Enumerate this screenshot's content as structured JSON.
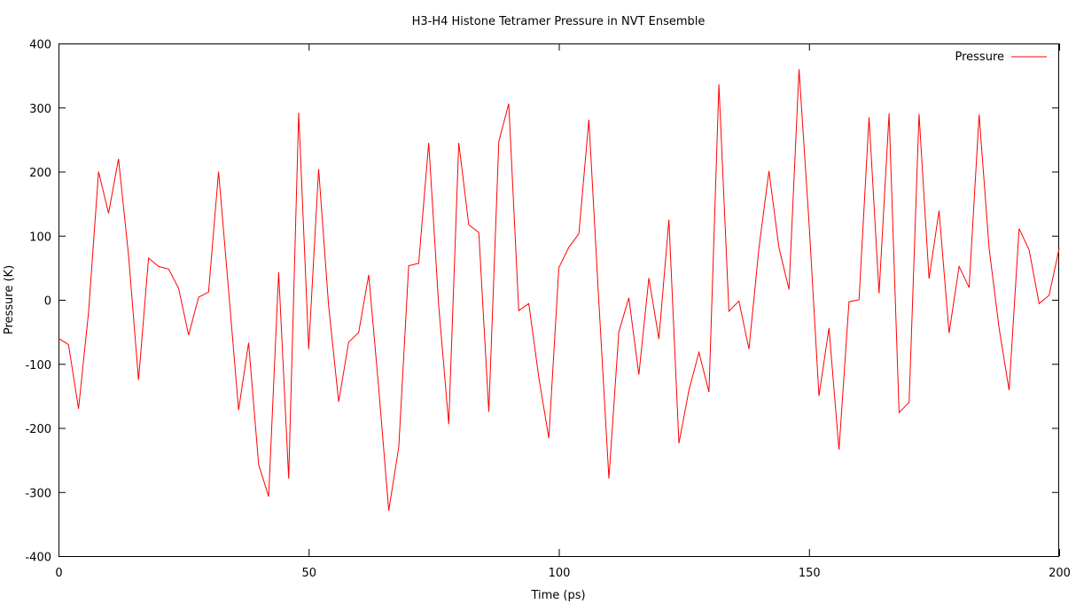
{
  "chart_data": {
    "type": "line",
    "title": "H3-H4 Histone Tetramer Pressure in NVT Ensemble",
    "xlabel": "Time (ps)",
    "ylabel": "Pressure (K)",
    "xlim": [
      0,
      200
    ],
    "ylim": [
      -400,
      400
    ],
    "x_ticks": [
      "0",
      "50",
      "100",
      "150",
      "200"
    ],
    "y_ticks": [
      "-400",
      "-300",
      "-200",
      "-100",
      "0",
      "100",
      "200",
      "300",
      "400"
    ],
    "grid": false,
    "legend_position": "top-right",
    "series": [
      {
        "name": "Pressure",
        "color": "#ff0000",
        "x": [
          0,
          2,
          4,
          6,
          8,
          10,
          12,
          14,
          16,
          18,
          20,
          22,
          24,
          26,
          28,
          30,
          32,
          34,
          36,
          38,
          40,
          42,
          44,
          46,
          48,
          50,
          52,
          54,
          56,
          58,
          60,
          62,
          64,
          66,
          68,
          70,
          72,
          74,
          76,
          78,
          80,
          82,
          84,
          86,
          88,
          90,
          92,
          94,
          96,
          98,
          100,
          102,
          104,
          106,
          108,
          110,
          112,
          114,
          116,
          118,
          120,
          122,
          124,
          126,
          128,
          130,
          132,
          134,
          136,
          138,
          140,
          142,
          144,
          146,
          148,
          150,
          152,
          154,
          156,
          158,
          160,
          162,
          164,
          166,
          168,
          170,
          172,
          174,
          176,
          178,
          180,
          182,
          184,
          186,
          188,
          190,
          192,
          194,
          196,
          198,
          200
        ],
        "y": [
          -60,
          -70,
          -170,
          -20,
          200,
          135,
          220,
          70,
          -125,
          65,
          52,
          48,
          18,
          -55,
          4,
          12,
          200,
          15,
          -172,
          -67,
          -257,
          -307,
          43,
          -279,
          292,
          -77,
          204,
          -10,
          -159,
          -66,
          -51,
          39,
          -138,
          -329,
          -230,
          53,
          57,
          245,
          -10,
          -194,
          245,
          117,
          105,
          -175,
          247,
          306,
          -17,
          -6,
          -121,
          -216,
          50,
          82,
          103,
          281,
          -4,
          -279,
          -50,
          3,
          -117,
          34,
          -61,
          125,
          -224,
          -141,
          -82,
          -144,
          336,
          -18,
          -2,
          -77,
          81,
          201,
          81,
          16,
          360,
          120,
          -150,
          -44,
          -234,
          -3,
          0,
          285,
          10,
          291,
          -176,
          -160,
          290,
          33,
          139,
          -52,
          52,
          19,
          289,
          80,
          -45,
          -141,
          111,
          78,
          -6,
          7,
          80
        ]
      }
    ]
  }
}
